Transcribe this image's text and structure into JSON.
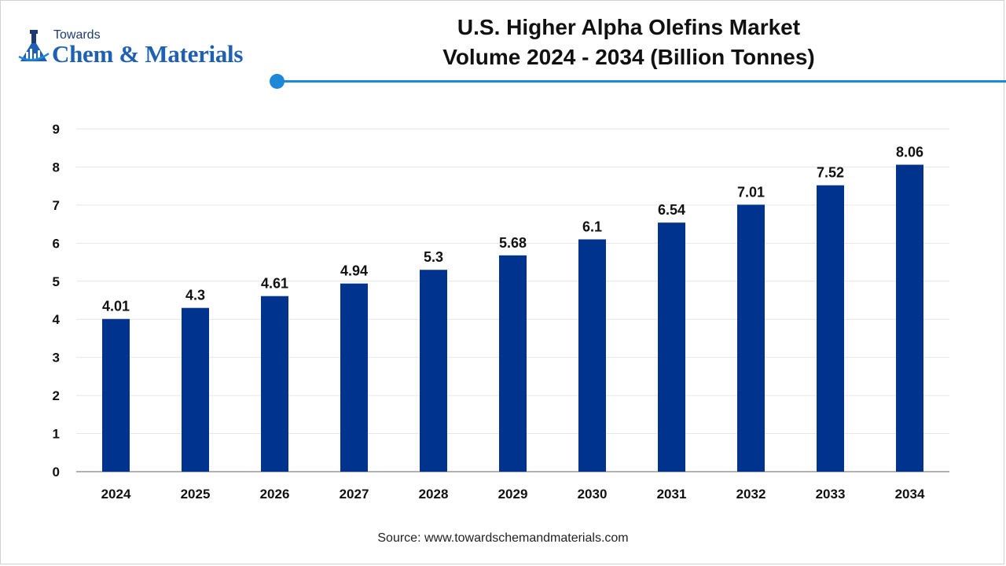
{
  "brand": {
    "top_text": "Towards",
    "main_text": "Chem & Materials"
  },
  "title": {
    "line1": "U.S. Higher Alpha Olefins Market",
    "line2": "Volume 2024 - 2034 (Billion Tonnes)"
  },
  "source": "Source: www.towardschemandmaterials.com",
  "colors": {
    "bar": "#00338d",
    "accent": "#1e88d8",
    "grid": "#e6e6e6",
    "axis": "#999999"
  },
  "chart_data": {
    "type": "bar",
    "title": "U.S. Higher Alpha Olefins Market Volume 2024 - 2034 (Billion Tonnes)",
    "xlabel": "",
    "ylabel": "",
    "categories": [
      "2024",
      "2025",
      "2026",
      "2027",
      "2028",
      "2029",
      "2030",
      "2031",
      "2032",
      "2033",
      "2034"
    ],
    "values": [
      4.01,
      4.3,
      4.61,
      4.94,
      5.3,
      5.68,
      6.1,
      6.54,
      7.01,
      7.52,
      8.06
    ],
    "value_labels": [
      "4.01",
      "4.3",
      "4.61",
      "4.94",
      "5.3",
      "5.68",
      "6.1",
      "6.54",
      "7.01",
      "7.52",
      "8.06"
    ],
    "ylim": [
      0,
      9
    ],
    "yticks": [
      "0",
      "1",
      "2",
      "3",
      "4",
      "5",
      "6",
      "7",
      "8",
      "9"
    ],
    "grid": true,
    "legend": "none"
  }
}
